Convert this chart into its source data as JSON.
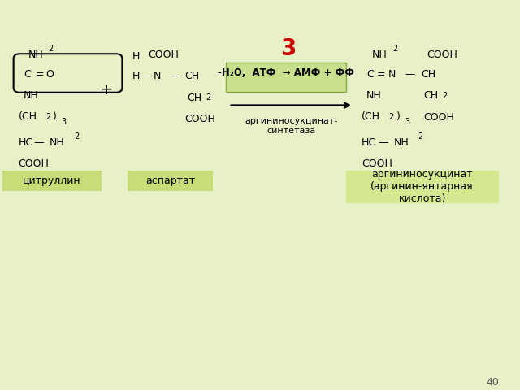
{
  "background_color": "#e8f0c8",
  "slide_number": "40",
  "reaction_number": "3",
  "reaction_number_color": "#cc0000",
  "reaction_box_color": "#c8e08c",
  "reaction_box_text1": "-H₂O,  АТФ  → АМФ + ФФ",
  "reaction_box_text2": "аргининосукцинат-\nсинтетаза",
  "label_citrulline": "цитруллин",
  "label_aspartate": "аспартат",
  "label_product": "аргининосукцинат\n(аргинин-янтарная\nкислота)",
  "label_product_bg": "#d4e890",
  "text_color": "#000000",
  "arrow_color": "#000000"
}
